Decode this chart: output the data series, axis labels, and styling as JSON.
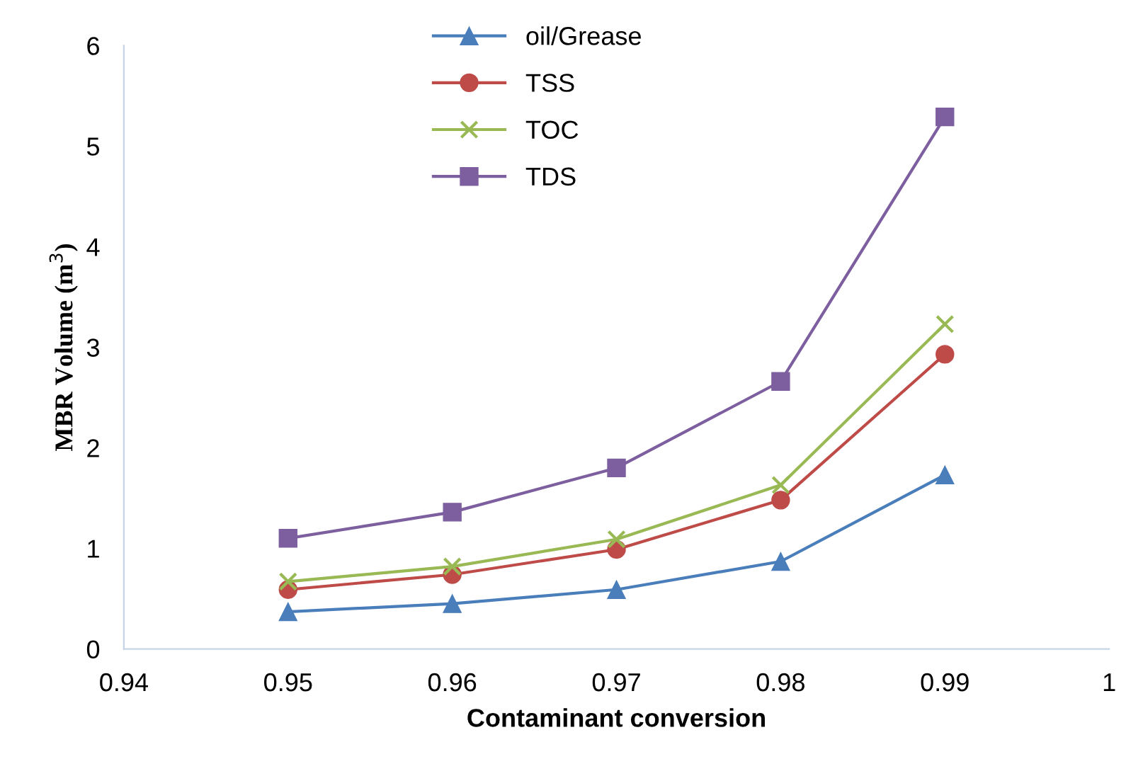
{
  "chart_data": {
    "type": "line",
    "xlabel": "Contaminant conversion",
    "ylabel": "MBR Volume (m$^{3}$)",
    "x": [
      0.95,
      0.96,
      0.97,
      0.98,
      0.99
    ],
    "xlim": [
      0.94,
      1
    ],
    "xticks": [
      0.94,
      0.95,
      0.96,
      0.97,
      0.98,
      0.99,
      1
    ],
    "ylim": [
      0,
      6
    ],
    "yticks": [
      0,
      1,
      2,
      3,
      4,
      5,
      6
    ],
    "grid": false,
    "legend": "top",
    "series": [
      {
        "name": "oil/Grease",
        "color": "#4a7ebb",
        "marker": "triangle",
        "values": [
          0.37,
          0.45,
          0.59,
          0.87,
          1.73
        ]
      },
      {
        "name": "TSS",
        "color": "#be4b48",
        "marker": "circle",
        "values": [
          0.59,
          0.74,
          0.99,
          1.48,
          2.93
        ]
      },
      {
        "name": "TOC",
        "color": "#98b954",
        "marker": "cross",
        "values": [
          0.67,
          0.82,
          1.09,
          1.63,
          3.23
        ]
      },
      {
        "name": "TDS",
        "color": "#7d5fa0",
        "marker": "square",
        "values": [
          1.1,
          1.36,
          1.8,
          2.66,
          5.29
        ]
      }
    ]
  }
}
